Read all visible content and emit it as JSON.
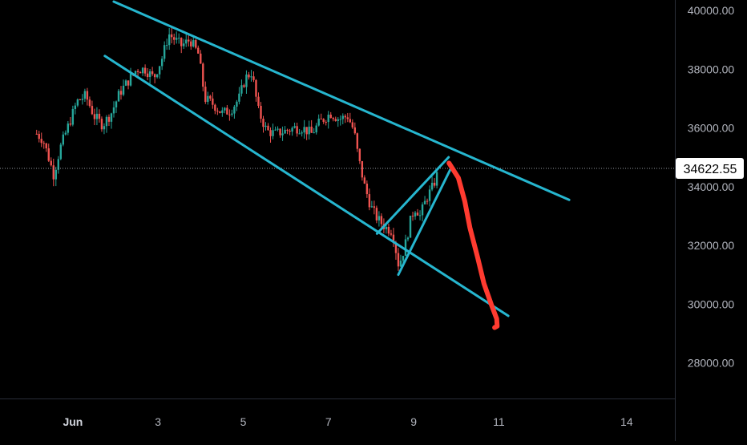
{
  "chart_data": {
    "type": "candlestick",
    "title": "",
    "ylim": [
      26300,
      40600
    ],
    "y_ticks": [
      {
        "label": "40000.00",
        "value": 40000
      },
      {
        "label": "38000.00",
        "value": 38000
      },
      {
        "label": "36000.00",
        "value": 36000
      },
      {
        "label": "34000.00",
        "value": 34000
      },
      {
        "label": "32000.00",
        "value": 32000
      },
      {
        "label": "30000.00",
        "value": 30000
      },
      {
        "label": "28000.00",
        "value": 28000
      }
    ],
    "x_ticks": [
      {
        "label": "Jun",
        "day": 1
      },
      {
        "label": "3",
        "day": 3
      },
      {
        "label": "5",
        "day": 5
      },
      {
        "label": "7",
        "day": 7
      },
      {
        "label": "9",
        "day": 9
      },
      {
        "label": "11",
        "day": 11
      },
      {
        "label": "14",
        "day": 14
      }
    ],
    "current_price": {
      "label": "34622.55",
      "value": 34622.55
    },
    "price_path": [
      [
        0.15,
        35800
      ],
      [
        0.3,
        35600
      ],
      [
        0.45,
        34900
      ],
      [
        0.55,
        34400
      ],
      [
        0.7,
        35300
      ],
      [
        0.95,
        36300
      ],
      [
        1.1,
        36900
      ],
      [
        1.3,
        37100
      ],
      [
        1.5,
        36400
      ],
      [
        1.7,
        36100
      ],
      [
        1.9,
        36500
      ],
      [
        2.1,
        37200
      ],
      [
        2.3,
        37600
      ],
      [
        2.5,
        38000
      ],
      [
        2.7,
        38000
      ],
      [
        2.9,
        37700
      ],
      [
        3.1,
        38400
      ],
      [
        3.25,
        39200
      ],
      [
        3.4,
        39000
      ],
      [
        3.55,
        38800
      ],
      [
        3.75,
        39000
      ],
      [
        3.95,
        38500
      ],
      [
        4.1,
        37000
      ],
      [
        4.3,
        36800
      ],
      [
        4.5,
        36500
      ],
      [
        4.7,
        36600
      ],
      [
        4.9,
        37000
      ],
      [
        5.05,
        37700
      ],
      [
        5.2,
        37900
      ],
      [
        5.35,
        36600
      ],
      [
        5.55,
        35900
      ],
      [
        5.75,
        35800
      ],
      [
        6.0,
        35900
      ],
      [
        6.2,
        36000
      ],
      [
        6.4,
        36000
      ],
      [
        6.6,
        35800
      ],
      [
        6.8,
        36200
      ],
      [
        7.05,
        36500
      ],
      [
        7.25,
        36300
      ],
      [
        7.45,
        36400
      ],
      [
        7.6,
        35900
      ],
      [
        7.7,
        35000
      ],
      [
        7.85,
        34000
      ],
      [
        8.0,
        33300
      ],
      [
        8.15,
        32900
      ],
      [
        8.35,
        32600
      ],
      [
        8.5,
        32500
      ],
      [
        8.65,
        31300
      ],
      [
        8.8,
        32000
      ],
      [
        8.95,
        33000
      ],
      [
        9.05,
        33300
      ],
      [
        9.15,
        33000
      ],
      [
        9.3,
        33600
      ],
      [
        9.45,
        34000
      ],
      [
        9.55,
        34400
      ]
    ],
    "trendlines": [
      {
        "name": "channel-upper",
        "start": [
          1.96,
          40300
        ],
        "end": [
          12.65,
          33550
        ]
      },
      {
        "name": "channel-lower",
        "start": [
          1.75,
          38450
        ],
        "end": [
          11.22,
          29600
        ]
      },
      {
        "name": "flag-upper",
        "start": [
          8.14,
          32400
        ],
        "end": [
          9.82,
          35000
        ]
      },
      {
        "name": "flag-lower",
        "start": [
          8.64,
          31000
        ],
        "end": [
          9.9,
          34700
        ]
      }
    ],
    "projection_path": [
      [
        9.83,
        34800
      ],
      [
        10.05,
        34300
      ],
      [
        10.2,
        33500
      ],
      [
        10.32,
        32600
      ],
      [
        10.5,
        31600
      ],
      [
        10.65,
        30700
      ],
      [
        10.82,
        30000
      ],
      [
        10.95,
        29500
      ],
      [
        10.96,
        29250
      ],
      [
        10.9,
        29200
      ]
    ],
    "colors": {
      "background": "#000000",
      "up": "#26a69a",
      "down": "#ef5350",
      "trendline": "#26b6cf",
      "projection": "#ff3b30",
      "axis_text": "#b2b5be",
      "price_label_bg": "#ffffff",
      "price_label_text": "#000000"
    }
  }
}
